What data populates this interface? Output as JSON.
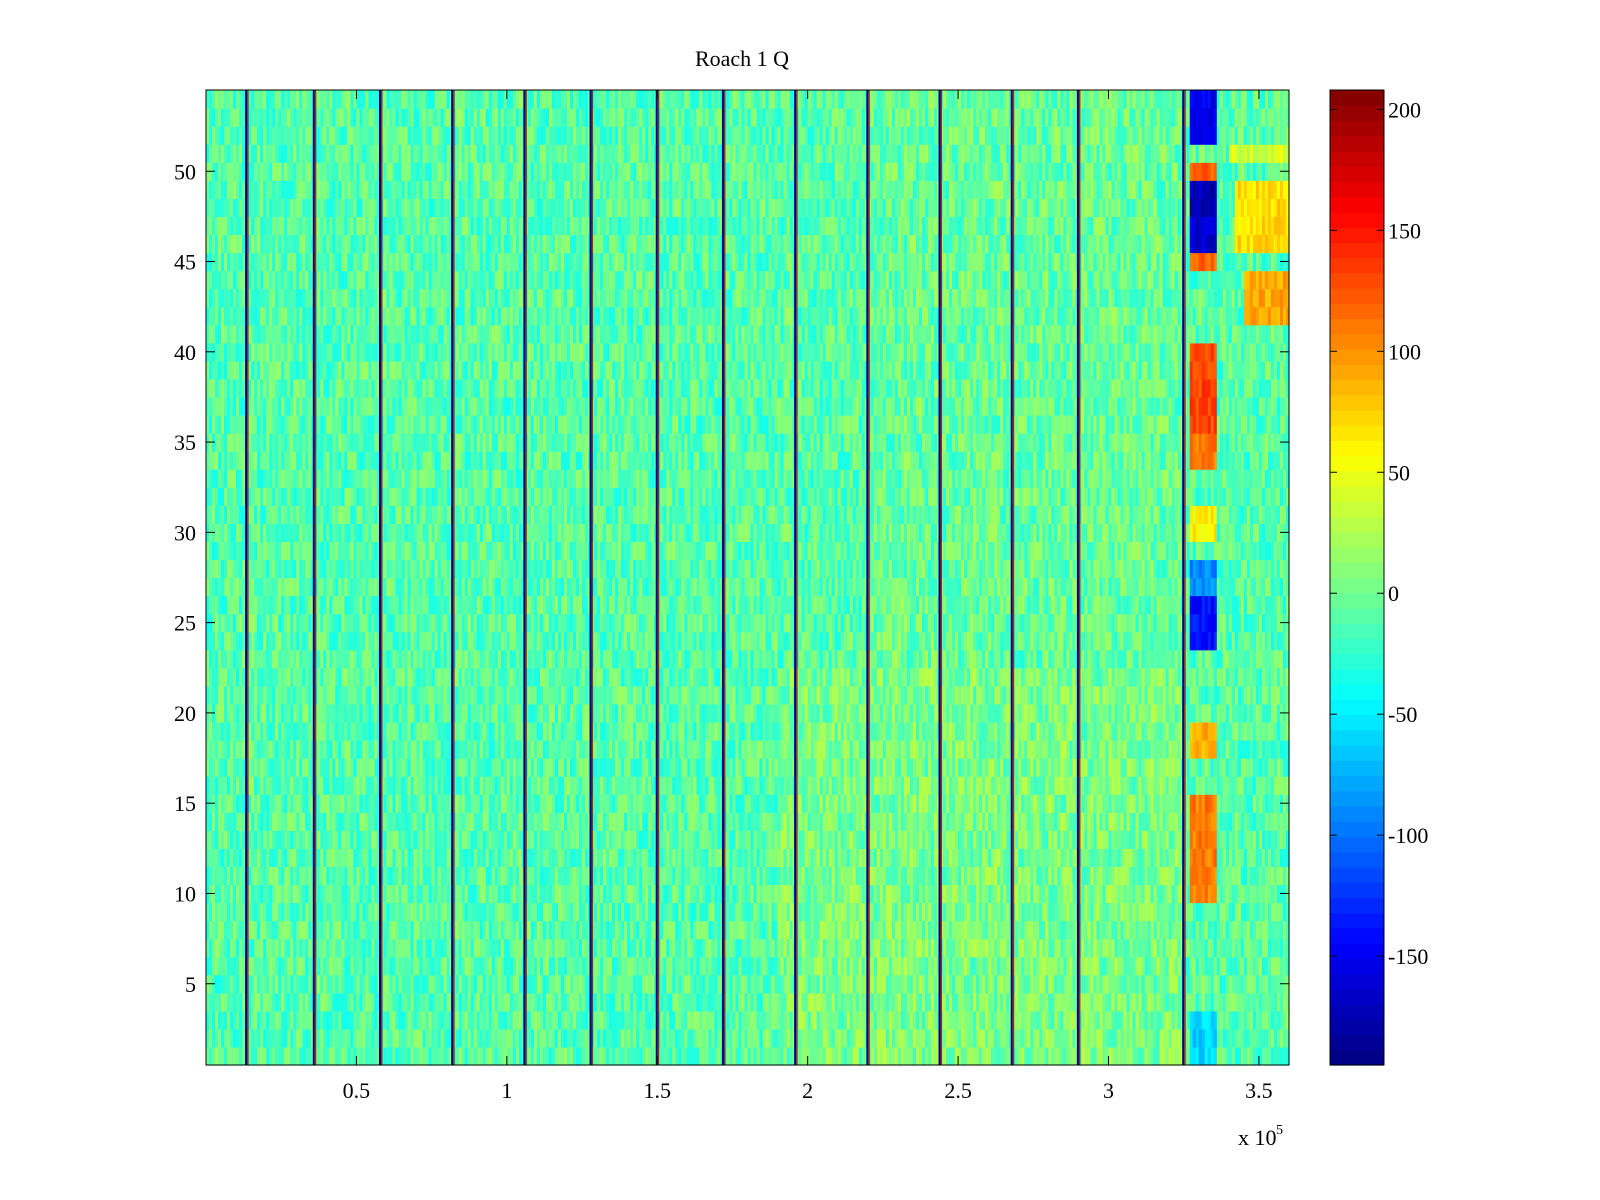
{
  "chart_data": {
    "type": "heatmap",
    "title": "Roach 1 Q",
    "xlabel": "",
    "ylabel": "",
    "x_exponent_label": {
      "base": "x 10",
      "exponent": "5"
    },
    "xlim": [
      0,
      3.6
    ],
    "ylim": [
      0.5,
      54.5
    ],
    "x_ticks": [
      {
        "value": 0.5,
        "label": "0.5"
      },
      {
        "value": 1,
        "label": "1"
      },
      {
        "value": 1.5,
        "label": "1.5"
      },
      {
        "value": 2,
        "label": "2"
      },
      {
        "value": 2.5,
        "label": "2.5"
      },
      {
        "value": 3,
        "label": "3"
      },
      {
        "value": 3.5,
        "label": "3.5"
      }
    ],
    "y_ticks": [
      {
        "value": 5,
        "label": "5"
      },
      {
        "value": 10,
        "label": "10"
      },
      {
        "value": 15,
        "label": "15"
      },
      {
        "value": 20,
        "label": "20"
      },
      {
        "value": 25,
        "label": "25"
      },
      {
        "value": 30,
        "label": "30"
      },
      {
        "value": 35,
        "label": "35"
      },
      {
        "value": 40,
        "label": "40"
      },
      {
        "value": 45,
        "label": "45"
      },
      {
        "value": 50,
        "label": "50"
      }
    ],
    "colorbar": {
      "colormap": "jet",
      "range": [
        -195,
        208
      ],
      "ticks": [
        {
          "value": 200,
          "label": "200"
        },
        {
          "value": 150,
          "label": "150"
        },
        {
          "value": 100,
          "label": "100"
        },
        {
          "value": 50,
          "label": "50"
        },
        {
          "value": 0,
          "label": "0"
        },
        {
          "value": -50,
          "label": "-50"
        },
        {
          "value": -100,
          "label": "-100"
        },
        {
          "value": -150,
          "label": "-150"
        }
      ]
    },
    "rows": 54,
    "column_bins": 360,
    "base_level": -10,
    "noise_amplitude": 28,
    "trend": [
      {
        "x_from": 1.9,
        "x_to": 3.25,
        "y_from": 1,
        "y_to": 22,
        "offset": 14
      },
      {
        "x_from": 2.2,
        "x_to": 3.25,
        "y_from": 23,
        "y_to": 54,
        "offset": 6
      }
    ],
    "boundary_lines_x": [
      0.135,
      0.36,
      0.58,
      0.82,
      1.06,
      1.28,
      1.5,
      1.72,
      1.96,
      2.2,
      2.44,
      2.68,
      2.9,
      3.25
    ],
    "boundary_line_values": {
      "low": -190,
      "high": 200
    },
    "segment_blocks": [
      {
        "x_from": 3.27,
        "x_to": 3.36,
        "y_from": 52,
        "y_to": 54,
        "value": -150
      },
      {
        "x_from": 3.27,
        "x_to": 3.36,
        "y_from": 50,
        "y_to": 50,
        "value": 120
      },
      {
        "x_from": 3.27,
        "x_to": 3.36,
        "y_from": 48,
        "y_to": 49,
        "value": -175
      },
      {
        "x_from": 3.27,
        "x_to": 3.36,
        "y_from": 46,
        "y_to": 47,
        "value": -160
      },
      {
        "x_from": 3.27,
        "x_to": 3.36,
        "y_from": 45,
        "y_to": 45,
        "value": 120
      },
      {
        "x_from": 3.27,
        "x_to": 3.36,
        "y_from": 36,
        "y_to": 40,
        "value": 130
      },
      {
        "x_from": 3.27,
        "x_to": 3.36,
        "y_from": 34,
        "y_to": 35,
        "value": 110
      },
      {
        "x_from": 3.27,
        "x_to": 3.36,
        "y_from": 30,
        "y_to": 31,
        "value": 60
      },
      {
        "x_from": 3.27,
        "x_to": 3.36,
        "y_from": 27,
        "y_to": 28,
        "value": -90
      },
      {
        "x_from": 3.27,
        "x_to": 3.36,
        "y_from": 24,
        "y_to": 26,
        "value": -140
      },
      {
        "x_from": 3.27,
        "x_to": 3.36,
        "y_from": 18,
        "y_to": 19,
        "value": 90
      },
      {
        "x_from": 3.27,
        "x_to": 3.36,
        "y_from": 10,
        "y_to": 15,
        "value": 110
      },
      {
        "x_from": 3.27,
        "x_to": 3.36,
        "y_from": 1,
        "y_to": 3,
        "value": -60
      },
      {
        "x_from": 3.42,
        "x_to": 3.6,
        "y_from": 46,
        "y_to": 49,
        "value": 70
      },
      {
        "x_from": 3.45,
        "x_to": 3.6,
        "y_from": 42,
        "y_to": 44,
        "value": 90
      },
      {
        "x_from": 3.4,
        "x_to": 3.6,
        "y_from": 51,
        "y_to": 51,
        "value": 40
      }
    ]
  }
}
